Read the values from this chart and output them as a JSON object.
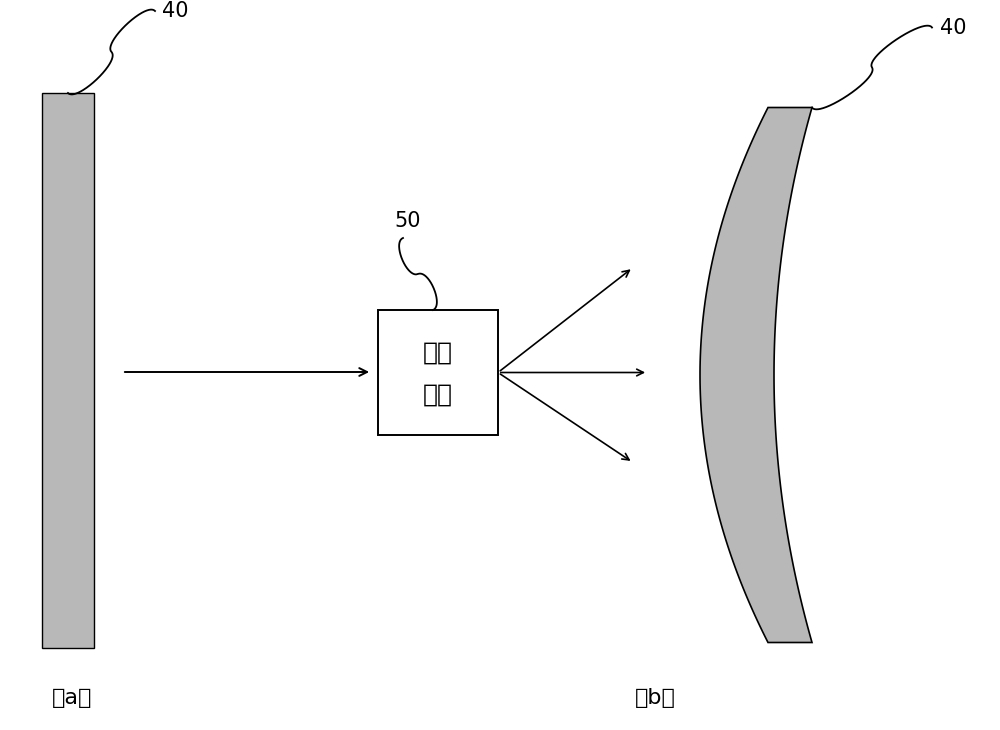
{
  "background_color": "#ffffff",
  "label_40_left": "40",
  "label_40_right": "40",
  "label_50": "50",
  "label_a": "（a）",
  "label_b": "（b）",
  "box_text_line1": "特定",
  "box_text_line2": "波长",
  "flat_panel_color": "#b8b8b8",
  "curved_panel_color": "#b8b8b8",
  "box_bg_color": "#ffffff",
  "box_edge_color": "#000000",
  "arrow_color": "#000000",
  "font_size_label": 15,
  "font_size_box": 18,
  "font_size_sublabel": 16
}
